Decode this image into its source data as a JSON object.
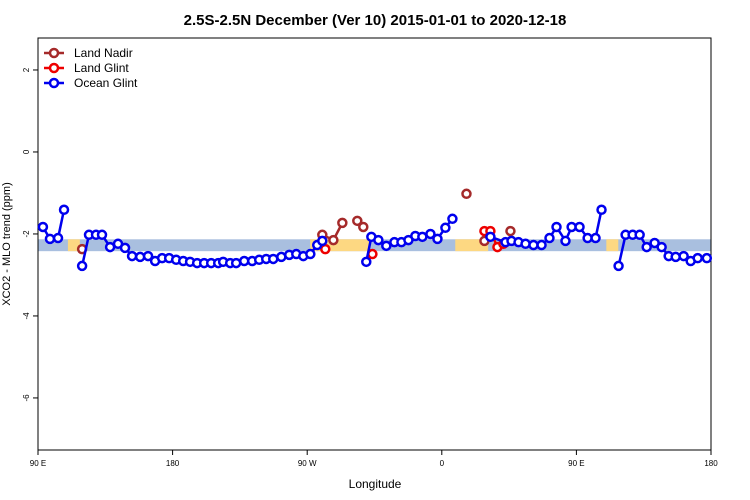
{
  "chart_data": {
    "type": "line",
    "title": "2.5S-2.5N December (Ver 10)   2015-01-01 to 2020-12-18",
    "x_label": "Longitude",
    "y_label": "XCO2 - MLO trend (ppm)",
    "xlim": [
      90,
      540
    ],
    "ylim": [
      -7.27,
      2.78
    ],
    "xticks": [
      {
        "value": 90,
        "label": "90 E"
      },
      {
        "value": 180,
        "label": "180"
      },
      {
        "value": 270,
        "label": "90 W"
      },
      {
        "value": 360,
        "label": "0"
      },
      {
        "value": 450,
        "label": "90 E"
      },
      {
        "value": 540,
        "label": "180"
      }
    ],
    "yticks": [
      2,
      0,
      -2,
      -4,
      -6
    ],
    "legend": "top-left",
    "band": {
      "range": [
        -2.13,
        -2.42
      ],
      "color": "#a9bfdf",
      "land_color": "#fdd882",
      "land": [
        [
          110,
          118
        ],
        [
          272,
          312
        ],
        [
          369,
          391
        ],
        [
          470,
          478
        ]
      ]
    },
    "series": [
      {
        "name": "Land Nadir",
        "color": "#a52a2a",
        "x": [
          119.5,
          null,
          280.1,
          287.5,
          293.5,
          null,
          303.5,
          307.5,
          null,
          376.5,
          null,
          388.5,
          null,
          405.9
        ],
        "values": [
          -2.37,
          null,
          -2.02,
          -2.15,
          -1.73,
          null,
          -1.68,
          -1.83,
          null,
          -1.02,
          null,
          -2.17,
          null,
          -1.93
        ]
      },
      {
        "name": "Land Glint",
        "color": "#ee0000",
        "x": [
          282.1,
          null,
          313.6,
          null,
          388.5,
          392.5,
          397.2,
          401.2
        ],
        "values": [
          -2.37,
          null,
          -2.49,
          null,
          -1.93,
          -1.93,
          -2.32,
          -2.24
        ]
      },
      {
        "name": "Ocean Glint",
        "color": "#0000ee",
        "x": [
          93.3,
          98,
          103.4,
          107.4,
          null,
          119.5,
          124.1,
          128.8,
          132.8,
          138.2,
          143.5,
          148.2,
          152.9,
          158.3,
          163.6,
          168.3,
          173,
          177.7,
          182.4,
          187.1,
          191.7,
          196.4,
          201.1,
          205.8,
          210.5,
          213.8,
          218.5,
          222.5,
          227.9,
          233.2,
          237.9,
          242.6,
          247.3,
          252.7,
          258,
          262.7,
          267.4,
          272.1,
          276.7,
          280.1,
          null,
          309.5,
          312.9,
          317.6,
          322.9,
          328.3,
          333,
          337.7,
          342.3,
          347,
          352.4,
          357.1,
          362.4,
          367.1,
          null,
          392.5,
          402.6,
          406.6,
          411.3,
          416,
          421.3,
          426.7,
          432,
          436.7,
          442.7,
          446.8,
          452.1,
          457.5,
          462.8,
          466.8,
          null,
          478.2,
          482.9,
          487.6,
          492.3,
          497,
          502.3,
          507,
          511.7,
          516.4,
          521.7,
          526.4,
          531.1,
          537.2
        ],
        "values": [
          -1.83,
          -2.12,
          -2.1,
          -1.41,
          null,
          -2.78,
          -2.02,
          -2.02,
          -2.02,
          -2.32,
          -2.24,
          -2.34,
          -2.54,
          -2.56,
          -2.54,
          -2.66,
          -2.59,
          -2.59,
          -2.63,
          -2.66,
          -2.68,
          -2.71,
          -2.71,
          -2.71,
          -2.71,
          -2.68,
          -2.71,
          -2.71,
          -2.66,
          -2.66,
          -2.63,
          -2.61,
          -2.61,
          -2.56,
          -2.51,
          -2.49,
          -2.54,
          -2.49,
          -2.27,
          -2.17,
          null,
          -2.68,
          -2.07,
          -2.15,
          -2.29,
          -2.2,
          -2.2,
          -2.15,
          -2.05,
          -2.07,
          -2.0,
          -2.12,
          -1.85,
          -1.63,
          null,
          -2.07,
          -2.2,
          -2.17,
          -2.2,
          -2.24,
          -2.27,
          -2.27,
          -2.1,
          -1.83,
          -2.17,
          -1.83,
          -1.83,
          -2.1,
          -2.1,
          -1.41,
          null,
          -2.78,
          -2.02,
          -2.02,
          -2.02,
          -2.32,
          -2.22,
          -2.32,
          -2.54,
          -2.56,
          -2.54,
          -2.66,
          -2.59,
          -2.59
        ]
      }
    ]
  }
}
